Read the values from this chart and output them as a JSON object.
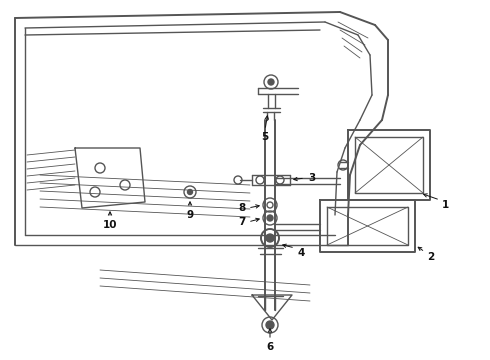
{
  "bg_color": "#ffffff",
  "line_color": "#555555",
  "label_color": "#111111",
  "figsize": [
    4.9,
    3.6
  ],
  "dpi": 100,
  "lw_heavy": 1.4,
  "lw_med": 1.0,
  "lw_light": 0.6,
  "label_fs": 7.5
}
